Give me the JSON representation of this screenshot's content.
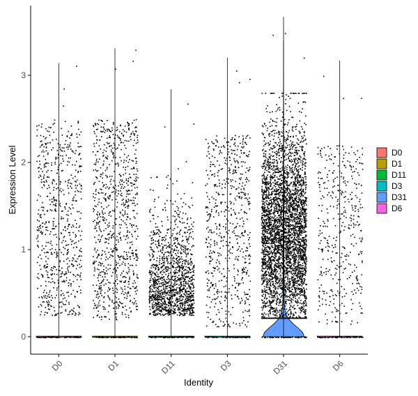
{
  "chart_data": {
    "type": "violin",
    "xlabel": "Identity",
    "ylabel": "Expression Level",
    "ylim": [
      -0.2,
      3.8
    ],
    "yticks": [
      0,
      1,
      2,
      3
    ],
    "categories": [
      "D0",
      "D1",
      "D11",
      "D3",
      "D31",
      "D6"
    ],
    "colors": [
      "#F8766D",
      "#B79F00",
      "#00BA38",
      "#00BFC4",
      "#619CFF",
      "#F564E3"
    ],
    "max_values": [
      3.14,
      3.31,
      2.84,
      3.2,
      3.67,
      3.17
    ],
    "nonzero_point_counts": [
      700,
      900,
      1400,
      650,
      4200,
      420
    ],
    "violin_profile_D31": {
      "y": [
        0.0,
        0.05,
        0.1,
        0.15,
        0.2,
        0.25,
        0.3,
        0.4,
        0.5,
        0.7,
        1.0,
        1.5,
        2.0,
        2.5,
        3.0,
        3.4
      ],
      "half_width_fraction": [
        0.92,
        0.85,
        0.65,
        0.42,
        0.24,
        0.12,
        0.07,
        0.035,
        0.03,
        0.025,
        0.02,
        0.013,
        0.009,
        0.006,
        0.003,
        0.0
      ]
    },
    "grid": false,
    "legend": {
      "placement": "right",
      "entries": [
        "D0",
        "D1",
        "D11",
        "D3",
        "D31",
        "D6"
      ]
    }
  }
}
